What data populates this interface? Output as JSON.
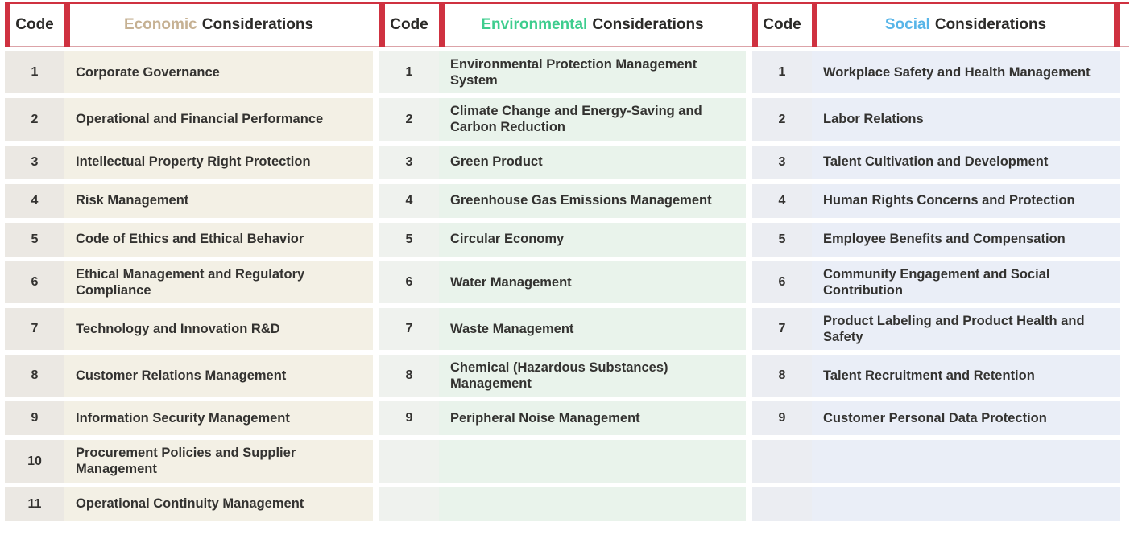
{
  "table": {
    "header_code_label": "Code",
    "row_count": 11,
    "colors": {
      "bar_red": "#cf3140",
      "line_top": "#cf3140",
      "line_bottom": "#dca3a8",
      "econ_code_bg": "#ebe8e3",
      "econ_cell_bg": "#f3f0e5",
      "env_code_bg": "#eff2ee",
      "env_cell_bg": "#e9f3eb",
      "soc_code_bg": "#ebedf2",
      "soc_cell_bg": "#eaeef7",
      "text_dark": "#333230",
      "header_text": "#2b2a28"
    },
    "sections": [
      {
        "key": "econ",
        "name": "Economic",
        "suffix": "Considerations",
        "accent": "#c6b193",
        "rows": [
          {
            "code": "1",
            "label": "Corporate Governance"
          },
          {
            "code": "2",
            "label": "Operational and Financial Performance"
          },
          {
            "code": "3",
            "label": "Intellectual Property Right Protection"
          },
          {
            "code": "4",
            "label": "Risk Management"
          },
          {
            "code": "5",
            "label": "Code of Ethics and Ethical Behavior"
          },
          {
            "code": "6",
            "label": "Ethical Management and Regulatory Compliance"
          },
          {
            "code": "7",
            "label": "Technology and Innovation R&D"
          },
          {
            "code": "8",
            "label": "Customer Relations Management"
          },
          {
            "code": "9",
            "label": "Information Security Management"
          },
          {
            "code": "10",
            "label": "Procurement Policies and Supplier Management"
          },
          {
            "code": "11",
            "label": "Operational Continuity Management"
          }
        ]
      },
      {
        "key": "env",
        "name": "Environmental",
        "suffix": "Considerations",
        "accent": "#3ecd8e",
        "rows": [
          {
            "code": "1",
            "label": "Environmental Protection Management System"
          },
          {
            "code": "2",
            "label": "Climate Change and Energy-Saving and Carbon Reduction"
          },
          {
            "code": "3",
            "label": "Green Product"
          },
          {
            "code": "4",
            "label": "Greenhouse Gas Emissions Management"
          },
          {
            "code": "5",
            "label": "Circular Economy"
          },
          {
            "code": "6",
            "label": "Water Management"
          },
          {
            "code": "7",
            "label": "Waste Management"
          },
          {
            "code": "8",
            "label": "Chemical (Hazardous Substances) Management"
          },
          {
            "code": "9",
            "label": "Peripheral Noise Management"
          }
        ]
      },
      {
        "key": "soc",
        "name": "Social",
        "suffix": "Considerations",
        "accent": "#58b5e8",
        "rows": [
          {
            "code": "1",
            "label": "Workplace Safety and Health Management"
          },
          {
            "code": "2",
            "label": "Labor Relations"
          },
          {
            "code": "3",
            "label": "Talent Cultivation and Development"
          },
          {
            "code": "4",
            "label": "Human Rights Concerns and Protection"
          },
          {
            "code": "5",
            "label": "Employee Benefits and Compensation"
          },
          {
            "code": "6",
            "label": "Community Engagement and Social Contribution"
          },
          {
            "code": "7",
            "label": "Product Labeling and Product Health and Safety"
          },
          {
            "code": "8",
            "label": "Talent Recruitment and Retention"
          },
          {
            "code": "9",
            "label": "Customer Personal Data Protection"
          }
        ]
      }
    ]
  }
}
